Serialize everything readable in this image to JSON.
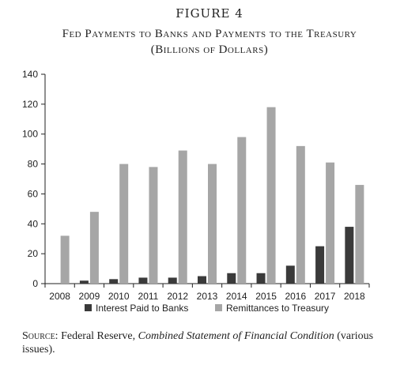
{
  "figure_label": "FIGURE 4",
  "title_line1": "Fed Payments to Banks and Payments to the Treasury",
  "title_line2": "(Billions of Dollars)",
  "source": {
    "label": "Source:",
    "prefix": " Federal Reserve, ",
    "publication": "Combined Statement of Financial Condition",
    "suffix": " (various issues)."
  },
  "chart_data": {
    "type": "bar",
    "categories": [
      "2008",
      "2009",
      "2010",
      "2011",
      "2012",
      "2013",
      "2014",
      "2015",
      "2016",
      "2017",
      "2018"
    ],
    "series": [
      {
        "name": "Interest Paid to Banks",
        "color": "#3a3a3a",
        "values": [
          0,
          2,
          3,
          4,
          4,
          5,
          7,
          7,
          12,
          25,
          38
        ]
      },
      {
        "name": "Remittances to Treasury",
        "color": "#a6a6a6",
        "values": [
          32,
          48,
          80,
          78,
          89,
          80,
          98,
          118,
          92,
          81,
          66
        ]
      }
    ],
    "y_ticks": [
      0,
      20,
      40,
      60,
      80,
      100,
      120,
      140
    ],
    "ylim": [
      0,
      140
    ],
    "grid": false,
    "legend": "bottom"
  }
}
